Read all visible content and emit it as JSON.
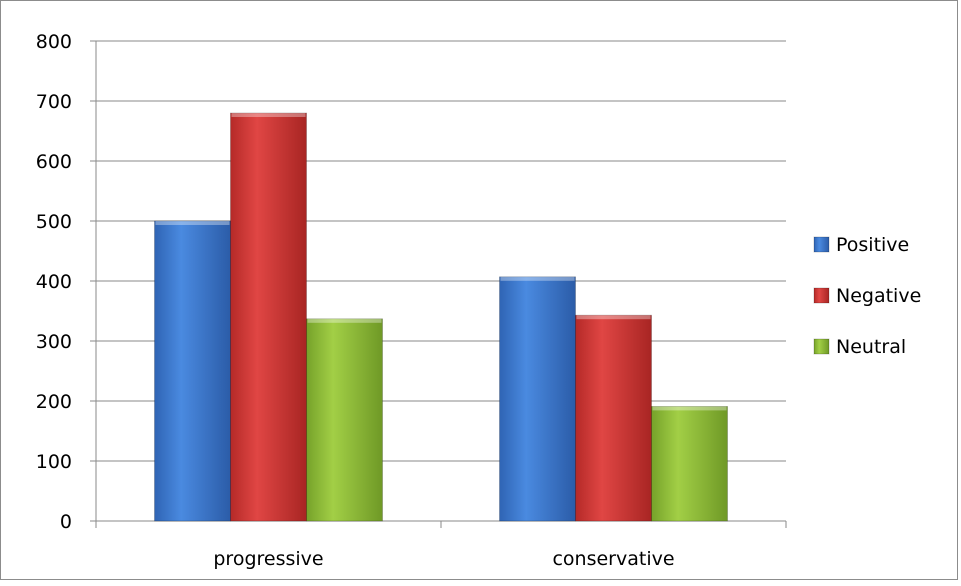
{
  "chart_data": {
    "type": "bar",
    "title": "",
    "xlabel": "",
    "ylabel": "",
    "categories": [
      "progressive",
      "conservative"
    ],
    "series": [
      {
        "name": "Positive",
        "values": [
          500,
          407
        ],
        "color": "#3f7fd6"
      },
      {
        "name": "Negative",
        "values": [
          680,
          343
        ],
        "color": "#d23b38"
      },
      {
        "name": "Neutral",
        "values": [
          337,
          191
        ],
        "color": "#92c13a"
      }
    ],
    "ylim": [
      0,
      800
    ],
    "yticks": [
      0,
      100,
      200,
      300,
      400,
      500,
      600,
      700,
      800
    ],
    "grid": true,
    "legend": "right"
  }
}
